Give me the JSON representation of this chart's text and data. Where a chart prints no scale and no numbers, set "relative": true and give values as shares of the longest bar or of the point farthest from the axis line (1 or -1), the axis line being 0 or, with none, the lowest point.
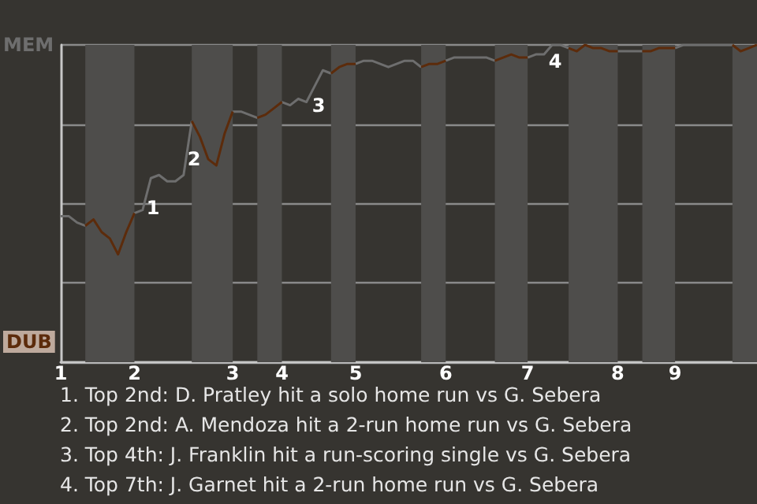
{
  "chart_data": {
    "type": "line",
    "relative": true,
    "grid": "y",
    "legend": false,
    "categories": [
      "1",
      null,
      null,
      null,
      null,
      null,
      null,
      null,
      null,
      "2",
      null,
      null,
      null,
      null,
      null,
      null,
      null,
      null,
      null,
      null,
      null,
      "3",
      null,
      null,
      null,
      null,
      null,
      "4",
      null,
      null,
      null,
      null,
      null,
      null,
      null,
      null,
      "5",
      null,
      null,
      null,
      null,
      null,
      null,
      null,
      null,
      null,
      null,
      "6",
      null,
      null,
      null,
      null,
      null,
      null,
      null,
      null,
      null,
      "7",
      null,
      null,
      null,
      null,
      null,
      null,
      null,
      null,
      null,
      null,
      "8",
      null,
      null,
      null,
      null,
      null,
      null,
      "9",
      null,
      null,
      null,
      null,
      null,
      null,
      null,
      null,
      null,
      null
    ],
    "series": [
      {
        "name": "MEM",
        "color": "#6e6e6e",
        "values": [
          0.46,
          0.46,
          0.44,
          0.43,
          null,
          null,
          null,
          null,
          null,
          0.47,
          0.48,
          0.58,
          0.59,
          0.57,
          0.57,
          0.59,
          0.76,
          null,
          null,
          null,
          null,
          0.79,
          0.79,
          0.78,
          0.77,
          null,
          null,
          0.82,
          0.81,
          0.83,
          0.82,
          0.87,
          0.92,
          0.91,
          null,
          null,
          0.94,
          0.95,
          0.95,
          0.94,
          0.93,
          0.94,
          0.95,
          0.95,
          0.93,
          null,
          null,
          0.95,
          0.96,
          0.96,
          0.96,
          0.96,
          0.96,
          0.95,
          null,
          null,
          null,
          0.96,
          0.97,
          0.97,
          1.0,
          1.0,
          0.99,
          null,
          null,
          null,
          null,
          null,
          0.98,
          0.98,
          0.98,
          0.98,
          null,
          null,
          null,
          0.99,
          1.0,
          1.0,
          1.0,
          1.0,
          1.0,
          1.0,
          1.0,
          null,
          null,
          null
        ]
      },
      {
        "name": "DUB",
        "color": "#5c2b0b",
        "values": [
          null,
          null,
          null,
          0.43,
          0.45,
          0.41,
          0.39,
          0.34,
          0.41,
          0.47,
          null,
          null,
          null,
          null,
          null,
          null,
          0.76,
          0.71,
          0.64,
          0.62,
          0.72,
          0.79,
          null,
          null,
          0.77,
          0.78,
          0.8,
          0.82,
          null,
          null,
          null,
          null,
          null,
          0.91,
          0.93,
          0.94,
          0.94,
          null,
          null,
          null,
          null,
          null,
          null,
          null,
          0.93,
          0.94,
          0.94,
          0.95,
          null,
          null,
          null,
          null,
          null,
          0.95,
          0.96,
          0.97,
          0.96,
          0.96,
          null,
          null,
          null,
          null,
          0.99,
          0.98,
          1.0,
          0.99,
          0.99,
          0.98,
          0.98,
          null,
          null,
          0.98,
          0.98,
          0.99,
          0.99,
          0.99,
          null,
          null,
          null,
          null,
          null,
          null,
          1.0,
          0.98,
          0.99,
          1.0
        ]
      }
    ],
    "annotations": [
      "1",
      "2",
      "3",
      "4",
      "1. Top 2nd: D. Pratley hit a solo home run vs G. Sebera",
      "2. Top 2nd: A. Mendoza hit a 2-run home run vs G. Sebera",
      "3. Top 4th: J. Franklin hit a run-scoring single vs G. Sebera",
      "4. Top 7th: J. Garnet hit a 2-run home run vs G. Sebera"
    ]
  }
}
